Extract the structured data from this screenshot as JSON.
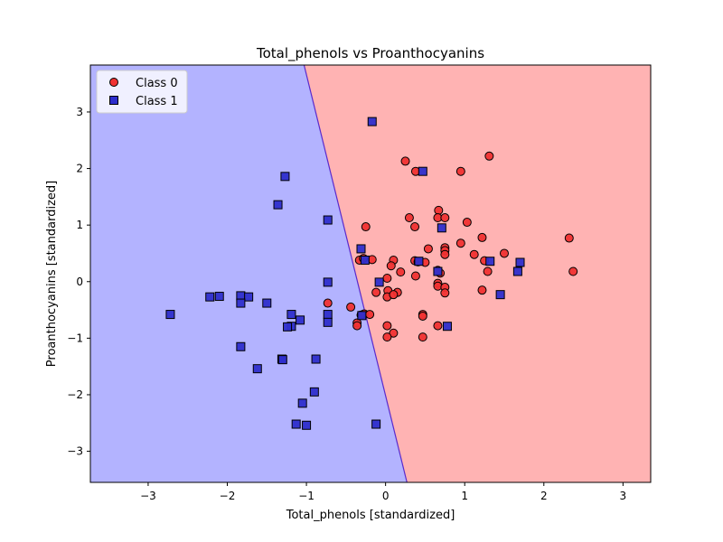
{
  "chart_data": {
    "type": "scatter",
    "title": "Total_phenols vs Proanthocyanins",
    "xlabel": "Total_phenols [standardized]",
    "ylabel": "Proanthocyanins [standardized]",
    "xlim": [
      -3.73,
      3.35
    ],
    "ylim": [
      -3.55,
      3.83
    ],
    "xticks": [
      -3,
      -2,
      -1,
      0,
      1,
      2,
      3
    ],
    "yticks": [
      -3,
      -2,
      -1,
      0,
      1,
      2,
      3
    ],
    "grid": false,
    "legend_position": "top-left",
    "decision_regions": {
      "class_1_region_color": "#b3b3ff",
      "class_0_region_color": "#ffb3b3",
      "boundary_color": "#5a2acc",
      "boundary_line": [
        [
          -1.03,
          3.83
        ],
        [
          0.27,
          -3.55
        ]
      ]
    },
    "series": [
      {
        "name": "Class 0",
        "marker": "circle",
        "color": "#f03232",
        "points": [
          [
            0.25,
            2.13
          ],
          [
            0.38,
            1.95
          ],
          [
            0.95,
            1.95
          ],
          [
            1.31,
            2.22
          ],
          [
            0.3,
            1.13
          ],
          [
            0.37,
            0.97
          ],
          [
            0.67,
            1.26
          ],
          [
            0.66,
            1.13
          ],
          [
            0.75,
            1.13
          ],
          [
            1.03,
            1.05
          ],
          [
            -0.25,
            0.97
          ],
          [
            0.54,
            0.58
          ],
          [
            0.75,
            0.6
          ],
          [
            0.75,
            0.55
          ],
          [
            0.75,
            0.48
          ],
          [
            0.95,
            0.68
          ],
          [
            1.12,
            0.48
          ],
          [
            1.22,
            0.78
          ],
          [
            1.25,
            0.37
          ],
          [
            1.29,
            0.18
          ],
          [
            1.5,
            0.5
          ],
          [
            2.32,
            0.77
          ],
          [
            2.37,
            0.18
          ],
          [
            -0.33,
            0.38
          ],
          [
            -0.28,
            0.41
          ],
          [
            -0.17,
            0.39
          ],
          [
            0.1,
            0.38
          ],
          [
            0.07,
            0.28
          ],
          [
            0.37,
            0.37
          ],
          [
            0.41,
            0.35
          ],
          [
            0.5,
            0.34
          ],
          [
            0.38,
            0.1
          ],
          [
            0.19,
            0.17
          ],
          [
            0.02,
            0.06
          ],
          [
            0.69,
            0.15
          ],
          [
            0.66,
            0.2
          ],
          [
            0.66,
            -0.03
          ],
          [
            0.66,
            -0.08
          ],
          [
            0.75,
            -0.1
          ],
          [
            0.75,
            -0.2
          ],
          [
            1.22,
            -0.15
          ],
          [
            0.03,
            -0.16
          ],
          [
            0.15,
            -0.19
          ],
          [
            -0.12,
            -0.19
          ],
          [
            0.02,
            -0.27
          ],
          [
            0.1,
            -0.23
          ],
          [
            -0.44,
            -0.45
          ],
          [
            -0.73,
            -0.38
          ],
          [
            -0.27,
            -0.57
          ],
          [
            -0.2,
            -0.58
          ],
          [
            -0.31,
            -0.59
          ],
          [
            0.47,
            -0.58
          ],
          [
            0.47,
            -0.61
          ],
          [
            -0.36,
            -0.73
          ],
          [
            -0.36,
            -0.78
          ],
          [
            0.02,
            -0.78
          ],
          [
            0.66,
            -0.78
          ],
          [
            0.1,
            -0.91
          ],
          [
            0.02,
            -0.98
          ],
          [
            0.47,
            -0.98
          ]
        ]
      },
      {
        "name": "Class 1",
        "marker": "square",
        "color": "#2e2ecc",
        "points": [
          [
            -0.17,
            2.83
          ],
          [
            0.47,
            1.95
          ],
          [
            -1.27,
            1.86
          ],
          [
            -1.36,
            1.36
          ],
          [
            -0.73,
            1.09
          ],
          [
            0.71,
            0.95
          ],
          [
            -0.31,
            0.58
          ],
          [
            -0.26,
            0.38
          ],
          [
            0.42,
            0.36
          ],
          [
            1.32,
            0.36
          ],
          [
            1.7,
            0.34
          ],
          [
            0.66,
            0.18
          ],
          [
            1.67,
            0.18
          ],
          [
            -0.73,
            -0.01
          ],
          [
            -0.08,
            -0.01
          ],
          [
            1.45,
            -0.23
          ],
          [
            -1.83,
            -0.25
          ],
          [
            -2.1,
            -0.26
          ],
          [
            -2.22,
            -0.27
          ],
          [
            -1.73,
            -0.27
          ],
          [
            -1.83,
            -0.38
          ],
          [
            -1.5,
            -0.38
          ],
          [
            -0.3,
            -0.6
          ],
          [
            -2.72,
            -0.58
          ],
          [
            -1.19,
            -0.58
          ],
          [
            -0.73,
            -0.58
          ],
          [
            -1.08,
            -0.68
          ],
          [
            -0.73,
            -0.72
          ],
          [
            -1.19,
            -0.79
          ],
          [
            -1.24,
            -0.8
          ],
          [
            0.78,
            -0.79
          ],
          [
            -1.83,
            -1.15
          ],
          [
            -1.31,
            -1.37
          ],
          [
            -1.3,
            -1.38
          ],
          [
            -0.88,
            -1.37
          ],
          [
            -1.62,
            -1.54
          ],
          [
            -0.9,
            -1.95
          ],
          [
            -1.05,
            -2.15
          ],
          [
            -1.13,
            -2.52
          ],
          [
            -1.0,
            -2.54
          ],
          [
            -0.12,
            -2.52
          ]
        ]
      }
    ]
  }
}
